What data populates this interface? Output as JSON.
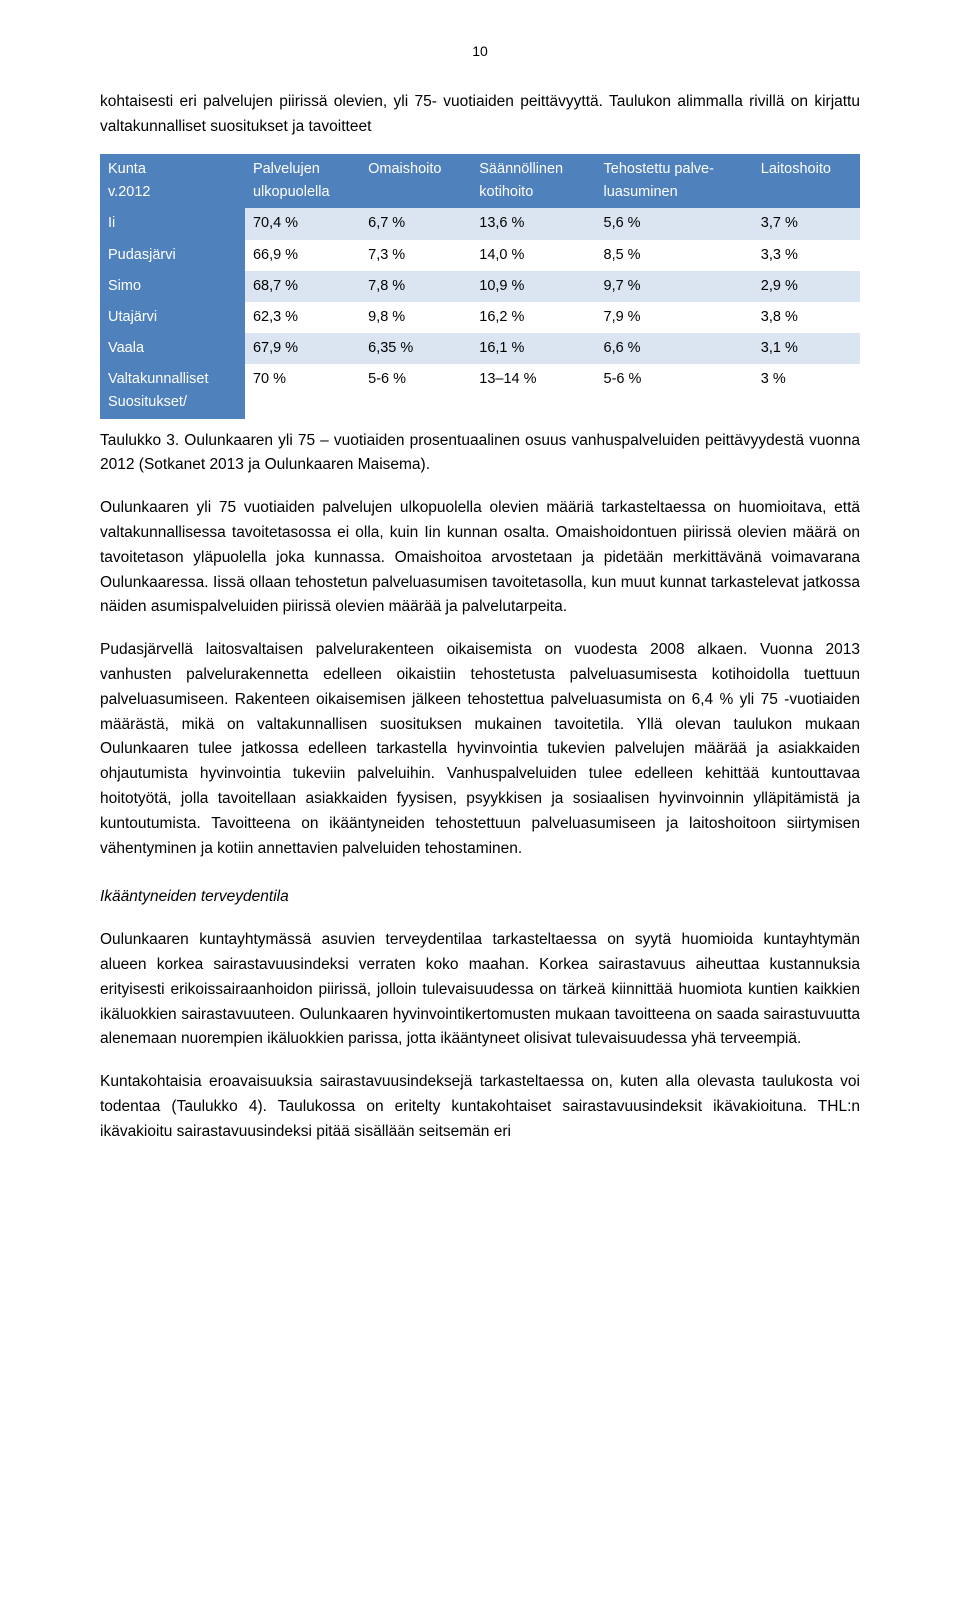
{
  "page_number": "10",
  "paragraphs": {
    "intro": "kohtaisesti eri palvelujen piirissä olevien, yli 75- vuotiaiden peittävyyttä. Taulukon alimmalla rivillä on kirjattu valtakunnalliset suositukset ja tavoitteet",
    "caption": "Taulukko 3. Oulunkaaren yli 75 – vuotiaiden prosentuaalinen osuus vanhuspalveluiden peittävyydestä vuonna 2012 (Sotkanet 2013 ja Oulunkaaren Maisema).",
    "p1": "Oulunkaaren yli 75 vuotiaiden palvelujen ulkopuolella olevien määriä tarkasteltaessa on huomioitava, että valtakunnallisessa tavoitetasossa ei olla, kuin Iin kunnan osalta. Omaishoidontuen piirissä olevien määrä on tavoitetason yläpuolella joka kunnassa. Omaishoitoa arvostetaan ja pidetään merkittävänä voimavarana Oulunkaaressa. Iissä ollaan tehostetun palveluasumisen tavoitetasolla, kun muut kunnat tarkastelevat jatkossa näiden asumispalveluiden piirissä olevien määrää ja palvelutarpeita.",
    "p2": "Pudasjärvellä laitosvaltaisen palvelurakenteen oikaisemista on vuodesta 2008 alkaen. Vuonna 2013 vanhusten palvelurakennetta edelleen oikaistiin tehostetusta palveluasumisesta kotihoidolla tuettuun palveluasumiseen. Rakenteen oikaisemisen jälkeen tehostettua palveluasumista on 6,4 % yli 75 -vuotiaiden määrästä, mikä on valtakunnallisen suosituksen mukainen tavoitetila. Yllä olevan taulukon mukaan Oulunkaaren tulee jatkossa edelleen tarkastella hyvinvointia tukevien palvelujen määrää ja asiakkaiden ohjautumista hyvinvointia tukeviin palveluihin. Vanhuspalveluiden tulee edelleen kehittää kuntouttavaa hoitotyötä, jolla tavoitellaan asiakkaiden fyysisen, psyykkisen ja sosiaalisen hyvinvoinnin ylläpitämistä ja kuntoutumista. Tavoitteena on ikääntyneiden tehostettuun palveluasumiseen ja laitoshoitoon siirtymisen vähentyminen ja kotiin annettavien palveluiden tehostaminen.",
    "subheading": "Ikääntyneiden terveydentila",
    "p3": "Oulunkaaren kuntayhtymässä asuvien terveydentilaa tarkasteltaessa on syytä huomioida kuntayhtymän alueen korkea sairastavuusindeksi verraten koko maahan. Korkea sairastavuus aiheuttaa kustannuksia erityisesti erikoissairaanhoidon piirissä, jolloin tulevaisuudessa on tärkeä kiinnittää huomiota kuntien kaikkien ikäluokkien sairastavuuteen. Oulunkaaren hyvinvointikertomusten mukaan tavoitteena on saada sairastuvuutta alenemaan nuorempien ikäluokkien parissa, jotta ikääntyneet olisivat tulevaisuudessa yhä terveempiä.",
    "p4": "Kuntakohtaisia eroavaisuuksia sairastavuusindeksejä tarkasteltaessa on, kuten alla olevasta taulukosta voi todentaa (Taulukko 4). Taulukossa on eritelty kuntakohtaiset sairastavuusindeksit ikävakioituna. THL:n ikävakioitu sairastavuusindeksi pitää sisällään seitsemän eri"
  },
  "table": {
    "header_bg": "#4f81bd",
    "header_fg": "#ffffff",
    "row_even_bg": "#dbe5f1",
    "row_odd_bg": "#ffffff",
    "columns": [
      "Kunta v.2012",
      "Palvelujen ulkopuolella",
      "Omaishoito",
      "Säännöllinen kotihoito",
      "Tehostettu palveluasuminen",
      "Laitoshoito"
    ],
    "header_lines": {
      "c0a": "Kunta",
      "c0b": "v.2012",
      "c1a": "Palvelujen",
      "c1b": "ulkopuolella",
      "c2a": "Omaishoito",
      "c3a": "Säännöllinen",
      "c3b": "kotihoito",
      "c4a": "Tehostettu palve-",
      "c4b": "luasuminen",
      "c5a": "Laitoshoito"
    },
    "rows": [
      {
        "label": "Ii",
        "v": [
          "70,4 %",
          "6,7 %",
          "13,6 %",
          "5,6 %",
          "3,7 %"
        ]
      },
      {
        "label": "Pudasjärvi",
        "v": [
          "66,9 %",
          "7,3 %",
          "14,0 %",
          "8,5 %",
          "3,3 %"
        ]
      },
      {
        "label": "Simo",
        "v": [
          "68,7 %",
          "7,8 %",
          "10,9 %",
          "9,7 %",
          "2,9 %"
        ]
      },
      {
        "label": "Utajärvi",
        "v": [
          "62,3 %",
          "9,8 %",
          "16,2 %",
          "7,9 %",
          "3,8 %"
        ]
      },
      {
        "label": "Vaala",
        "v": [
          "67,9 %",
          "6,35 %",
          "16,1 %",
          "6,6 %",
          "3,1 %"
        ]
      },
      {
        "label": "Valtakunnalliset Suositukset/",
        "label_l1": "Valtakunnalliset",
        "label_l2": "Suositukset/",
        "v": [
          "70 %",
          "5-6 %",
          "13–14 %",
          "5-6 %",
          "3 %"
        ]
      }
    ]
  }
}
